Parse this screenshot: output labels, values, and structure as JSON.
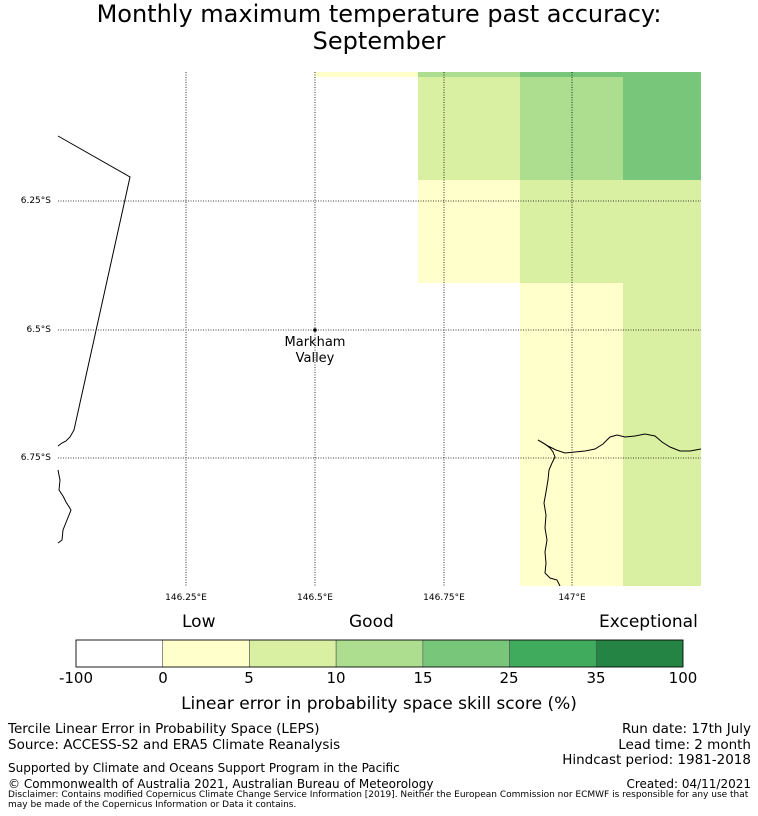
{
  "title": {
    "line1": "Monthly maximum temperature past accuracy:",
    "line2": "September"
  },
  "map": {
    "lat_labels": [
      "6.25°S",
      "6.5°S",
      "6.75°S"
    ],
    "lon_labels": [
      "146.25°E",
      "146.5°E",
      "146.75°E",
      "147°E"
    ],
    "place": {
      "name_line1": "Markham",
      "name_line2": "Valley"
    }
  },
  "colorbar": {
    "headings": {
      "low": "Low",
      "good": "Good",
      "exceptional": "Exceptional"
    },
    "ticks": [
      "-100",
      "0",
      "5",
      "10",
      "15",
      "25",
      "35",
      "100"
    ],
    "colors": [
      "#ffffff",
      "#ffffcc",
      "#d9f0a3",
      "#addd8e",
      "#78c679",
      "#41ab5d",
      "#238443"
    ],
    "title": "Linear error in probability space skill score (%)"
  },
  "footer": {
    "method": "Tercile Linear Error in Probability Space (LEPS)",
    "source": "Source: ACCESS-S2 and ERA5 Climate Reanalysis",
    "run_date": "Run date: 17th July",
    "lead_time": "Lead time: 2 month",
    "hindcast": "Hindcast period: 1981-2018",
    "support": "Supported by Climate and Oceans Support Program in the Pacific",
    "copyright": "© Commonwealth of Australia 2021, Australian Bureau of Meteorology",
    "created": "Created: 04/11/2021",
    "disclaimer": "Disclaimer: Contains modified Copernicus Climate Change Service Information [2019]. Neither the European Commission nor ECMWF is responsible for any use that may be made of the Copernicus Information or Data it contains."
  }
}
